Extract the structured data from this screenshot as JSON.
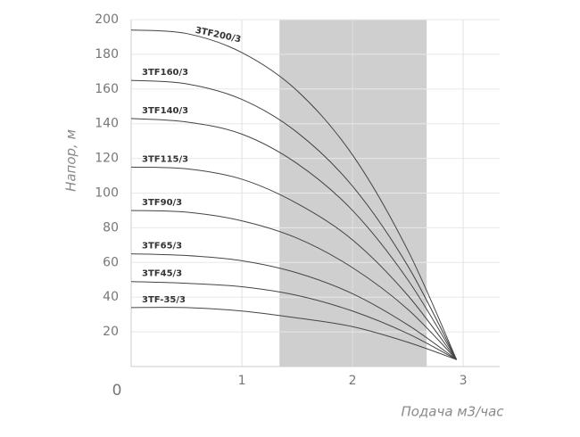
{
  "chart_data": {
    "type": "line",
    "x_label": "Подача м3/час",
    "y_label": "Напор, м",
    "x": [
      0,
      0.5,
      1,
      1.5,
      2,
      2.5,
      2.94
    ],
    "series": [
      {
        "name": "3TF200/3",
        "color": "#444444",
        "values": [
          194,
          192,
          181,
          159,
          122,
          67,
          4
        ]
      },
      {
        "name": "3TF160/3",
        "color": "#444444",
        "values": [
          165,
          163,
          154,
          135,
          104,
          58,
          4
        ]
      },
      {
        "name": "3TF140/3",
        "color": "#444444",
        "values": [
          143,
          141,
          134,
          117,
          90,
          50,
          4
        ]
      },
      {
        "name": "3TF115/3",
        "color": "#444444",
        "values": [
          115,
          114,
          108,
          94,
          73,
          41,
          4
        ]
      },
      {
        "name": "3TF90/3",
        "color": "#444444",
        "values": [
          90,
          89,
          84,
          74,
          57,
          33,
          4
        ]
      },
      {
        "name": "3TF65/3",
        "color": "#444444",
        "values": [
          65,
          64,
          61,
          54,
          42,
          24,
          4
        ]
      },
      {
        "name": "3TF45/3",
        "color": "#444444",
        "values": [
          49,
          48,
          46,
          41,
          32,
          19,
          4
        ]
      },
      {
        "name": "3TF-35/3",
        "color": "#444444",
        "values": [
          34,
          34,
          32,
          28,
          23,
          14,
          4
        ]
      }
    ],
    "shaded_range": [
      1.34,
      2.67
    ],
    "shade_color": "#cfcfcf",
    "xlim": [
      0,
      3.33
    ],
    "xticks": [
      0,
      1,
      2,
      3
    ],
    "ylim": [
      0,
      200
    ],
    "yticks": [
      20,
      40,
      60,
      80,
      100,
      120,
      140,
      160,
      180,
      200
    ],
    "grid": true
  }
}
